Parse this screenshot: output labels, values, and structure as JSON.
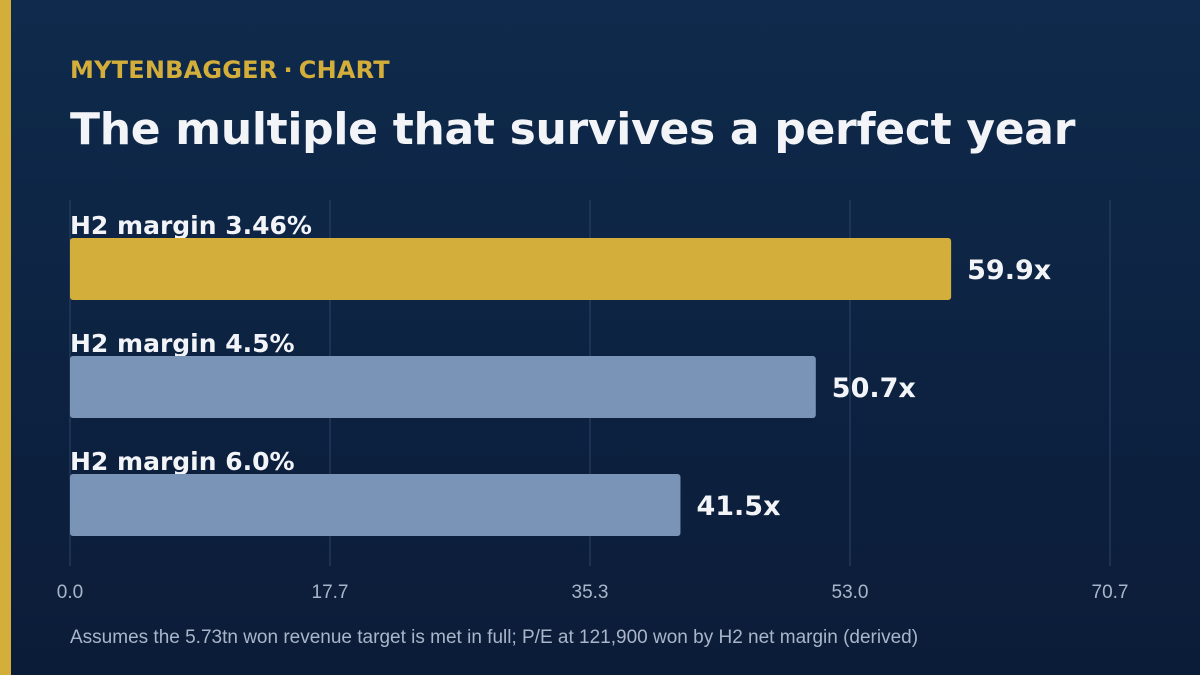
{
  "brand": {
    "name": "MYTENBAGGER",
    "separator": "·",
    "section": "CHART"
  },
  "title": "The multiple that survives a perfect year",
  "footnote": "Assumes the 5.73tn won revenue target is met in full; P/E at 121,900 won by H2 net margin (derived)",
  "colors": {
    "accent": "#d4ae3a",
    "bar_default": "#7a94b8",
    "background_top": "#0f2a4c",
    "background_bottom": "#0b1c38",
    "grid": "#2d4466",
    "label": "#f2f4f8",
    "tick": "#a9b6c9"
  },
  "chart_data": {
    "type": "bar",
    "orientation": "horizontal",
    "categories": [
      "H2 margin 3.46%",
      "H2 margin 4.5%",
      "H2 margin 6.0%"
    ],
    "values": [
      59.9,
      50.7,
      41.5
    ],
    "value_labels": [
      "59.9x",
      "50.7x",
      "41.5x"
    ],
    "highlight_index": 0,
    "xlim": [
      0,
      70.7
    ],
    "xticks": [
      "0.0",
      "17.7",
      "35.3",
      "53.0",
      "70.7"
    ],
    "grid": true,
    "title": "The multiple that survives a perfect year",
    "xlabel": "",
    "ylabel": ""
  }
}
